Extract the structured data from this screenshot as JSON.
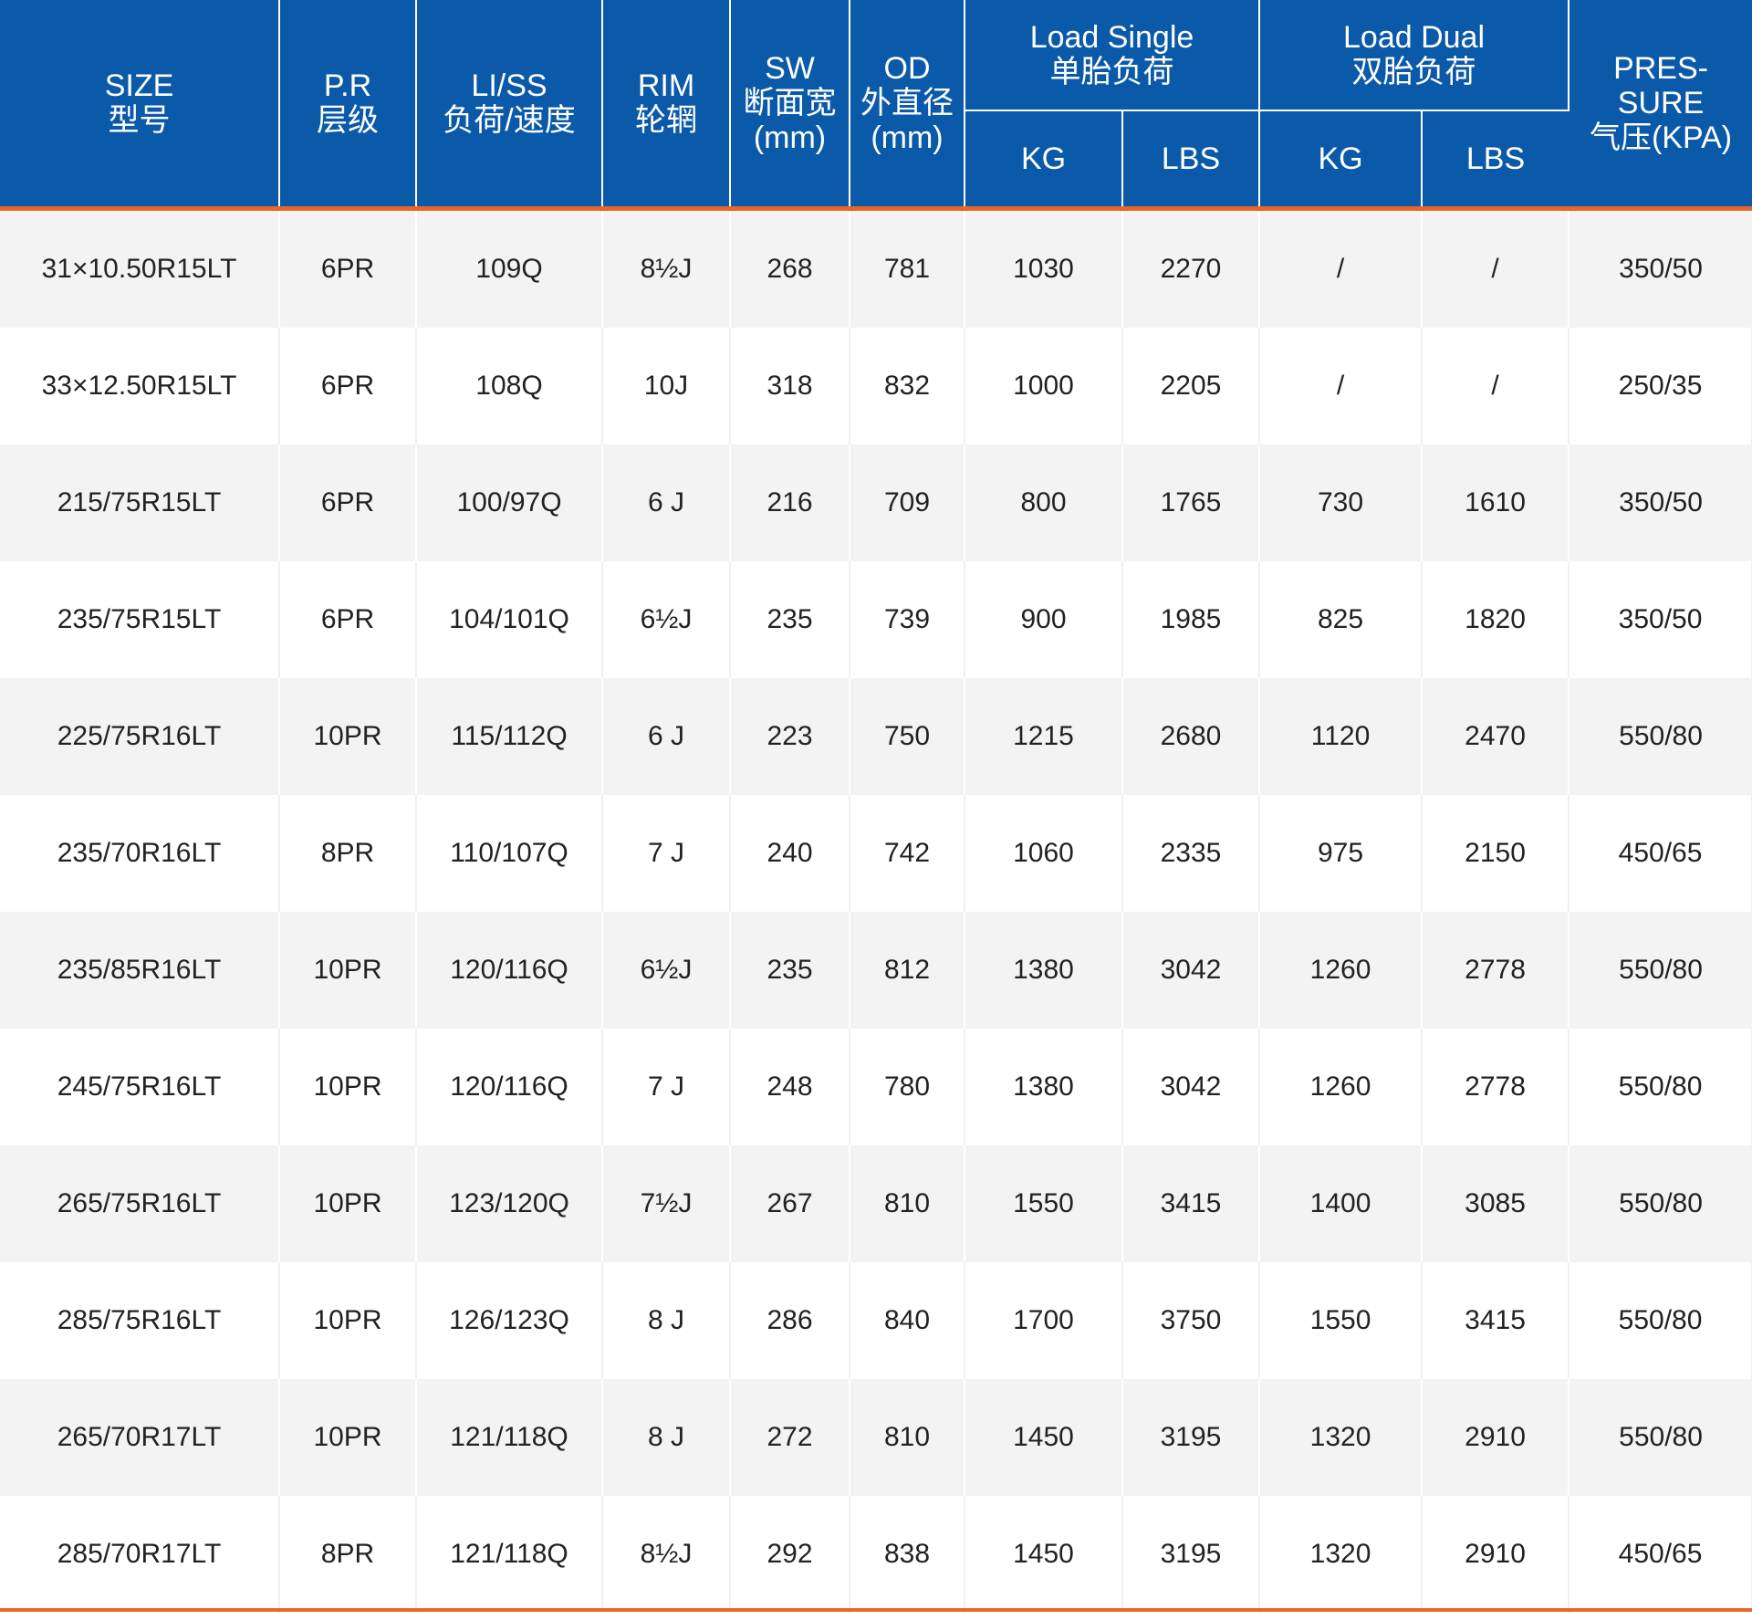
{
  "header": {
    "size": [
      "SIZE",
      "型号"
    ],
    "pr": [
      "P.R",
      "层级"
    ],
    "liss": [
      "LI/SS",
      "负荷/速度"
    ],
    "rim": [
      "RIM",
      "轮辋"
    ],
    "sw": [
      "SW",
      "断面宽",
      "(mm)"
    ],
    "od": [
      "OD",
      "外直径",
      "(mm)"
    ],
    "load_single": [
      "Load Single",
      "单胎负荷"
    ],
    "load_dual": [
      "Load Dual",
      "双胎负荷"
    ],
    "pressure": [
      "PRES-",
      "SURE",
      "气压(KPA)"
    ],
    "kg": "KG",
    "lbs": "LBS"
  },
  "rows": [
    [
      "31×10.50R15LT",
      "6PR",
      "109Q",
      "8½J",
      "268",
      "781",
      "1030",
      "2270",
      "/",
      "/",
      "350/50"
    ],
    [
      "33×12.50R15LT",
      "6PR",
      "108Q",
      "10J",
      "318",
      "832",
      "1000",
      "2205",
      "/",
      "/",
      "250/35"
    ],
    [
      "215/75R15LT",
      "6PR",
      "100/97Q",
      "6 J",
      "216",
      "709",
      "800",
      "1765",
      "730",
      "1610",
      "350/50"
    ],
    [
      "235/75R15LT",
      "6PR",
      "104/101Q",
      "6½J",
      "235",
      "739",
      "900",
      "1985",
      "825",
      "1820",
      "350/50"
    ],
    [
      "225/75R16LT",
      "10PR",
      "115/112Q",
      "6 J",
      "223",
      "750",
      "1215",
      "2680",
      "1120",
      "2470",
      "550/80"
    ],
    [
      "235/70R16LT",
      "8PR",
      "110/107Q",
      "7 J",
      "240",
      "742",
      "1060",
      "2335",
      "975",
      "2150",
      "450/65"
    ],
    [
      "235/85R16LT",
      "10PR",
      "120/116Q",
      "6½J",
      "235",
      "812",
      "1380",
      "3042",
      "1260",
      "2778",
      "550/80"
    ],
    [
      "245/75R16LT",
      "10PR",
      "120/116Q",
      "7 J",
      "248",
      "780",
      "1380",
      "3042",
      "1260",
      "2778",
      "550/80"
    ],
    [
      "265/75R16LT",
      "10PR",
      "123/120Q",
      "7½J",
      "267",
      "810",
      "1550",
      "3415",
      "1400",
      "3085",
      "550/80"
    ],
    [
      "285/75R16LT",
      "10PR",
      "126/123Q",
      "8 J",
      "286",
      "840",
      "1700",
      "3750",
      "1550",
      "3415",
      "550/80"
    ],
    [
      "265/70R17LT",
      "10PR",
      "121/118Q",
      "8 J",
      "272",
      "810",
      "1450",
      "3195",
      "1320",
      "2910",
      "550/80"
    ],
    [
      "285/70R17LT",
      "8PR",
      "121/118Q",
      "8½J",
      "292",
      "838",
      "1450",
      "3195",
      "1320",
      "2910",
      "450/65"
    ]
  ],
  "colors": {
    "header_bg": "#0b5aa9",
    "accent_line": "#e8662b",
    "row_alt": "#f3f3f3"
  }
}
